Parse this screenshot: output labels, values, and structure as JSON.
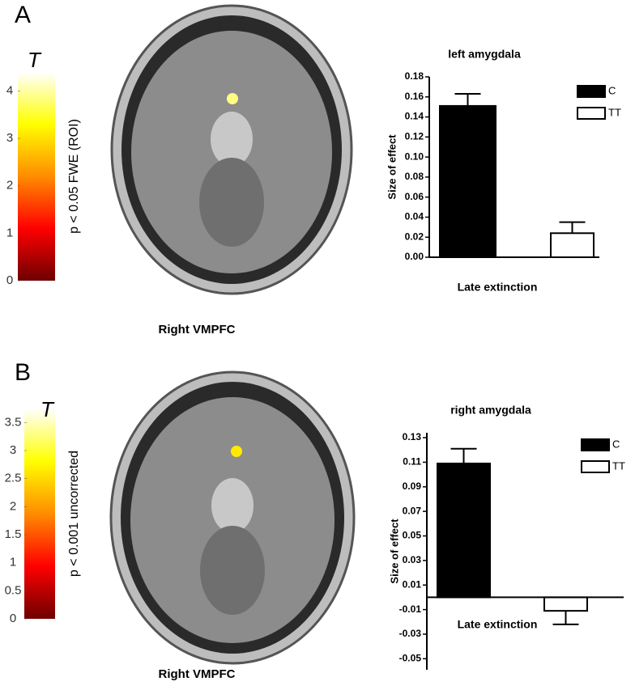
{
  "panels": [
    {
      "label": "A",
      "caption": "Right VMPFC"
    },
    {
      "label": "B",
      "caption": "Right VMPFC"
    }
  ],
  "chart_data": [
    {
      "type": "colorbar",
      "title": "T",
      "label": "p < 0.05 FWE (ROI)",
      "ylim": [
        0,
        4.4
      ],
      "yticks": [
        0,
        1,
        2,
        3,
        4
      ],
      "colors": [
        "#6e0000",
        "#ff0000",
        "#ff8c00",
        "#ffff00",
        "#ffffff"
      ]
    },
    {
      "type": "bar",
      "title": "left amygdala",
      "y_label": "Size of effect",
      "categories": [
        "Late extinction"
      ],
      "series": [
        {
          "name": "C",
          "color": "#000000",
          "values": [
            0.151
          ],
          "errors": [
            0.012
          ]
        },
        {
          "name": "TT",
          "color": "#ffffff",
          "values": [
            0.024
          ],
          "errors": [
            0.011
          ]
        }
      ],
      "ylim": [
        0,
        0.18
      ],
      "yticks": [
        {
          "value": 0,
          "label": "0.00"
        },
        0.02,
        0.04,
        0.06,
        0.08,
        {
          "value": 0.1,
          "label": "0.10"
        },
        0.12,
        0.14,
        0.16,
        0.18
      ]
    },
    {
      "type": "colorbar",
      "title": "T",
      "label": "p < 0.001 uncorrected",
      "ylim": [
        0,
        3.75
      ],
      "yticks": [
        0,
        0.5,
        1,
        1.5,
        2,
        2.5,
        3,
        3.5
      ],
      "colors": [
        "#6e0000",
        "#ff0000",
        "#ff8c00",
        "#ffff00",
        "#ffffff"
      ]
    },
    {
      "type": "bar",
      "title": "right amygdala",
      "y_label": "Size of effect",
      "categories": [
        "Late extinction"
      ],
      "series": [
        {
          "name": "C",
          "color": "#000000",
          "values": [
            0.109
          ],
          "errors": [
            0.012
          ]
        },
        {
          "name": "TT",
          "color": "#ffffff",
          "values": [
            -0.011
          ],
          "errors": [
            0.011
          ]
        }
      ],
      "ylim": [
        -0.059,
        0.134
      ],
      "yticks": [
        -0.05,
        -0.03,
        -0.01,
        0.01,
        0.03,
        0.05,
        0.07,
        0.09,
        0.11,
        0.13
      ]
    }
  ]
}
